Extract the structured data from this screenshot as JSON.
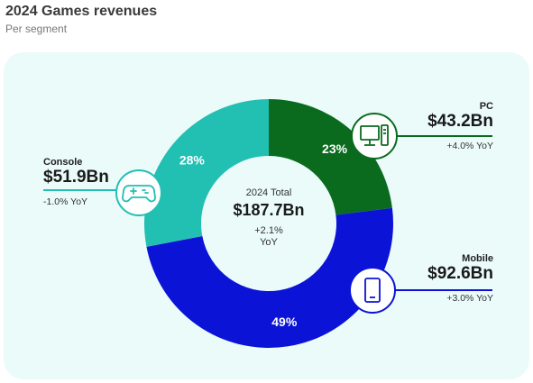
{
  "header": {
    "title": "2024 Games revenues",
    "subtitle": "Per segment"
  },
  "center": {
    "title": "2024 Total",
    "value": "$187.7Bn",
    "yoy_line1": "+2.1%",
    "yoy_line2": "YoY"
  },
  "segments": {
    "console": {
      "name": "Console",
      "value": "$51.9Bn",
      "yoy": "-1.0% YoY",
      "percent_label": "28%",
      "color": "#22bfb3",
      "icon": "gamepad-icon"
    },
    "pc": {
      "name": "PC",
      "value": "$43.2Bn",
      "yoy": "+4.0% YoY",
      "percent_label": "23%",
      "color": "#0a6b1f",
      "icon": "desktop-pc-icon"
    },
    "mobile": {
      "name": "Mobile",
      "value": "$92.6Bn",
      "yoy": "+3.0% YoY",
      "percent_label": "49%",
      "color": "#0b14d6",
      "icon": "smartphone-icon"
    }
  },
  "chart_data": {
    "type": "pie",
    "title": "2024 Games revenues",
    "subtitle": "Per segment",
    "categories": [
      "PC",
      "Mobile",
      "Console"
    ],
    "values": [
      23,
      49,
      28
    ],
    "amounts": [
      "$43.2Bn",
      "$92.6Bn",
      "$51.9Bn"
    ],
    "yoy": [
      "+4.0% YoY",
      "+3.0% YoY",
      "-1.0% YoY"
    ],
    "colors": [
      "#0a6b1f",
      "#0b14d6",
      "#22bfb3"
    ],
    "total": "$187.7Bn"
  }
}
